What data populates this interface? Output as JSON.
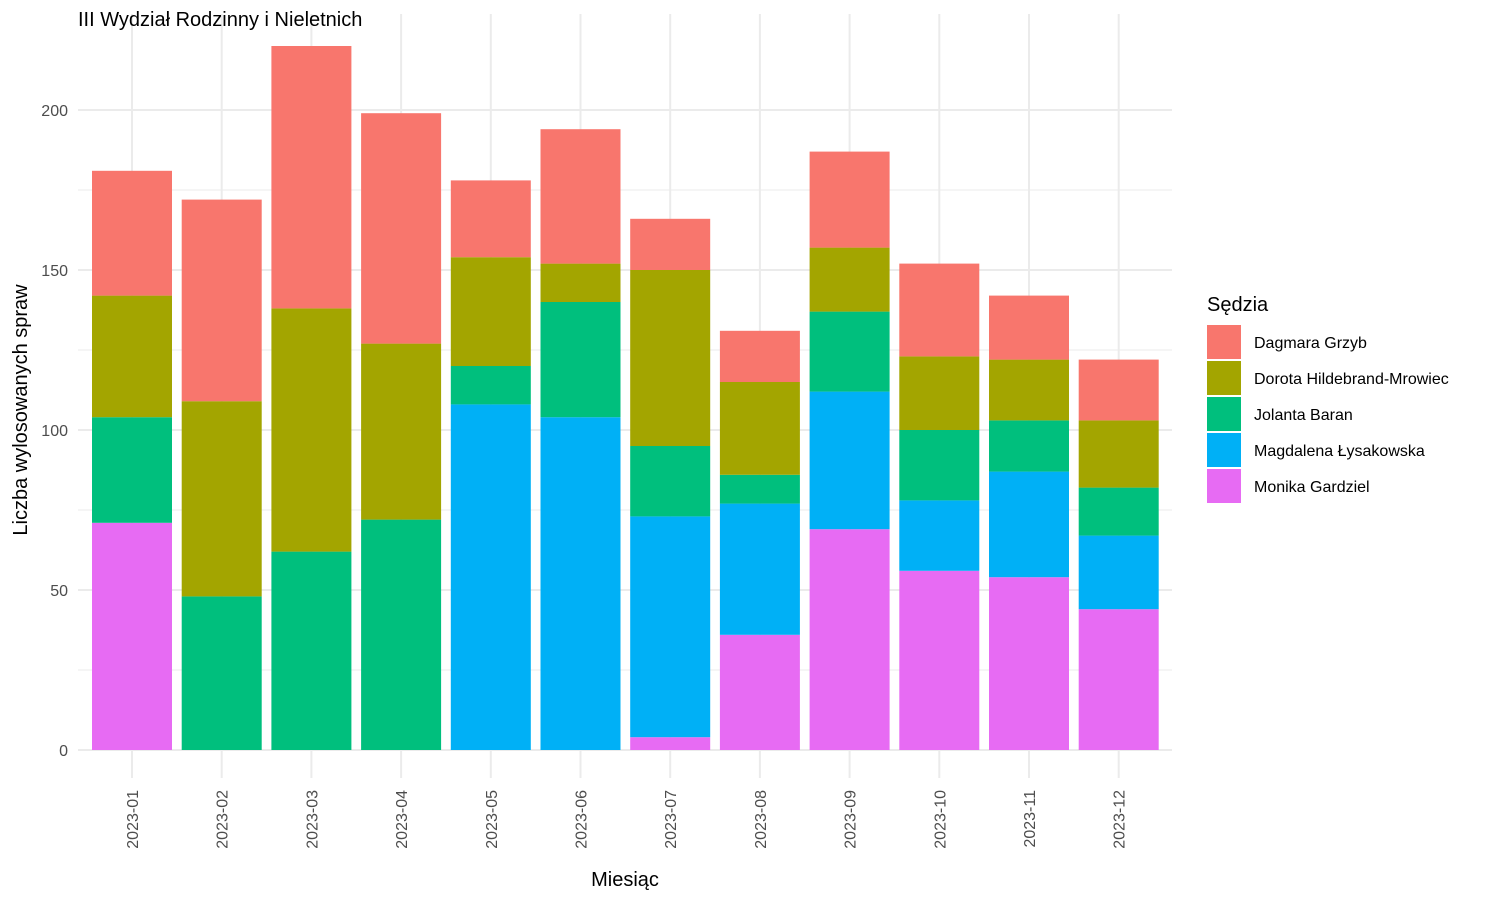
{
  "chart_data": {
    "type": "bar",
    "stacked": true,
    "title": "III Wydział Rodzinny i Nieletnich",
    "xlabel": "Miesiąc",
    "ylabel": "Liczba wylosowanych spraw",
    "ylim": [
      0,
      220
    ],
    "yticks": [
      0,
      50,
      100,
      150,
      200
    ],
    "grid": true,
    "legend_title": "Sędzia",
    "legend_position": "right",
    "categories": [
      "2023-01",
      "2023-02",
      "2023-03",
      "2023-04",
      "2023-05",
      "2023-06",
      "2023-07",
      "2023-08",
      "2023-09",
      "2023-10",
      "2023-11",
      "2023-12"
    ],
    "series": [
      {
        "name": "Monika Gardziel",
        "color": "#E76BF3",
        "values": [
          71,
          0,
          0,
          0,
          0,
          0,
          4,
          36,
          69,
          56,
          54,
          44
        ]
      },
      {
        "name": "Magdalena Łysakowska",
        "color": "#00B0F6",
        "values": [
          0,
          0,
          0,
          0,
          108,
          104,
          69,
          41,
          43,
          22,
          33,
          23
        ]
      },
      {
        "name": "Jolanta Baran",
        "color": "#00BF7D",
        "values": [
          33,
          48,
          62,
          72,
          12,
          36,
          22,
          9,
          25,
          22,
          16,
          15
        ]
      },
      {
        "name": "Dorota Hildebrand-Mrowiec",
        "color": "#A3A500",
        "values": [
          38,
          61,
          76,
          55,
          34,
          12,
          55,
          29,
          20,
          23,
          19,
          21
        ]
      },
      {
        "name": "Dagmara Grzyb",
        "color": "#F8766D",
        "values": [
          39,
          63,
          82,
          72,
          24,
          42,
          16,
          16,
          30,
          29,
          20,
          19
        ]
      }
    ],
    "legend_order": [
      "Dagmara Grzyb",
      "Dorota Hildebrand-Mrowiec",
      "Jolanta Baran",
      "Magdalena Łysakowska",
      "Monika Gardziel"
    ]
  }
}
